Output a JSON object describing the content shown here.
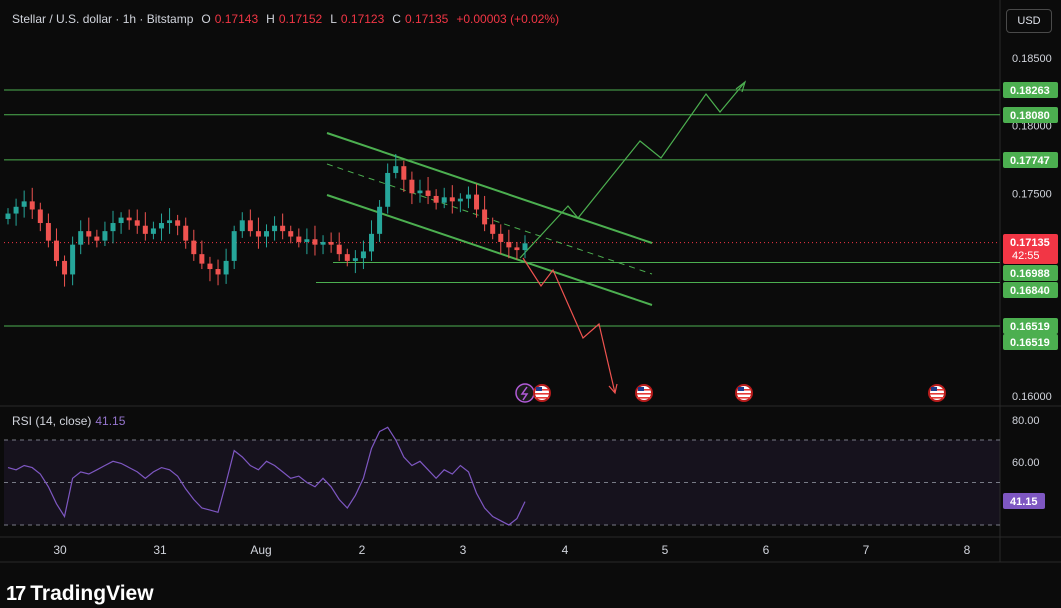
{
  "header": {
    "symbol": "Stellar / U.S. dollar · 1h · Bitstamp",
    "o_label": "O",
    "o_value": "0.17143",
    "h_label": "H",
    "h_value": "0.17152",
    "l_label": "L",
    "l_value": "0.17123",
    "c_label": "C",
    "c_value": "0.17135",
    "change": "+0.00003 (+0.02%)"
  },
  "currency_button": "USD",
  "colors": {
    "up": "#26a69a",
    "down": "#ef5350",
    "green_line": "#4caf50",
    "rsi": "#7e57c2",
    "price_tag": "#f23645",
    "level_tag": "#4caf50"
  },
  "price_axis": {
    "ticks": [
      "0.18500",
      "0.18000",
      "0.17500",
      "0.16000"
    ],
    "tick_values": [
      0.185,
      0.18,
      0.175,
      0.16
    ]
  },
  "level_tags": [
    {
      "label": "0.18263",
      "value": 0.18263
    },
    {
      "label": "0.18080",
      "value": 0.1808
    },
    {
      "label": "0.17747",
      "value": 0.17747
    },
    {
      "label": "0.16988",
      "value": 0.16988
    },
    {
      "label": "0.16840",
      "value": 0.1684
    },
    {
      "label": "0.16519",
      "value": 0.16519
    },
    {
      "label": "0.16519",
      "value": 0.16519
    }
  ],
  "current_price": {
    "label": "0.17135",
    "countdown": "42:55",
    "value": 0.17135
  },
  "time_axis": {
    "labels": [
      "30",
      "31",
      "Aug",
      "2",
      "3",
      "4",
      "5",
      "6",
      "7",
      "8"
    ]
  },
  "rsi": {
    "label": "RSI (14, close)",
    "value": "41.15",
    "axis_ticks": [
      "80.00",
      "60.00"
    ],
    "bands": [
      70,
      50,
      30
    ]
  },
  "brand": "TradingView",
  "chart_data": {
    "type": "candlestick",
    "timeframe": "1h",
    "price_range": [
      0.1595,
      0.1875
    ],
    "horizontal_levels": [
      0.18263,
      0.1808,
      0.17747,
      0.16988,
      0.1684,
      0.16519
    ],
    "close_series_sample": [
      0.1735,
      0.174,
      0.1744,
      0.1738,
      0.1728,
      0.1715,
      0.17,
      0.169,
      0.1712,
      0.1722,
      0.1718,
      0.1715,
      0.1722,
      0.1728,
      0.1732,
      0.173,
      0.1726,
      0.172,
      0.1724,
      0.1728,
      0.173,
      0.1726,
      0.1715,
      0.1705,
      0.1698,
      0.1694,
      0.169,
      0.17,
      0.1722,
      0.173,
      0.1722,
      0.1718,
      0.1722,
      0.1726,
      0.1722,
      0.1718,
      0.1714,
      0.1716,
      0.1712,
      0.1714,
      0.1712,
      0.1705,
      0.17,
      0.1702,
      0.1707,
      0.172,
      0.174,
      0.1765,
      0.177,
      0.176,
      0.175,
      0.1752,
      0.1748,
      0.1743,
      0.1747,
      0.1744,
      0.1746,
      0.1749,
      0.1738,
      0.1727,
      0.172,
      0.1714,
      0.171,
      0.1708,
      0.1713
    ],
    "rsi_series_sample": [
      57,
      56,
      58,
      57,
      54,
      48,
      40,
      34,
      52,
      55,
      54,
      56,
      58,
      60,
      59,
      57,
      55,
      52,
      55,
      57,
      56,
      53,
      47,
      42,
      38,
      37,
      36,
      50,
      65,
      62,
      58,
      56,
      60,
      58,
      55,
      52,
      53,
      50,
      48,
      52,
      48,
      42,
      38,
      44,
      52,
      66,
      74,
      76,
      70,
      62,
      58,
      60,
      56,
      52,
      56,
      54,
      58,
      55,
      45,
      38,
      34,
      32,
      30,
      33,
      41
    ]
  }
}
